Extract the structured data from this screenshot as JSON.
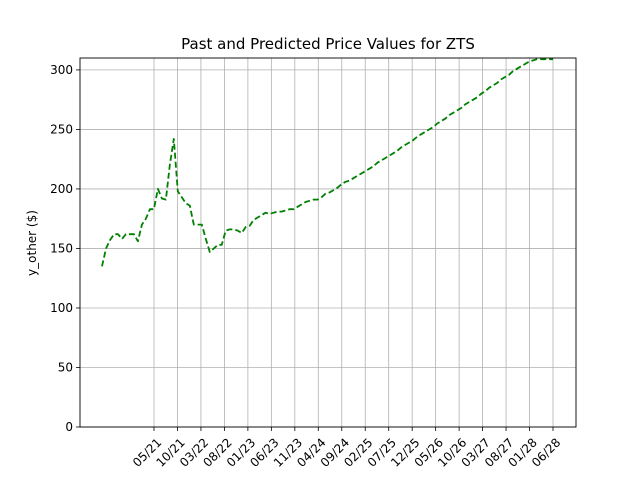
{
  "chart_data": {
    "type": "line",
    "title": "Past and Predicted Price Values for ZTS",
    "xlabel": "",
    "ylabel": "y_other ($)",
    "ylim": [
      0,
      310
    ],
    "yticks": [
      0,
      50,
      100,
      150,
      200,
      250,
      300
    ],
    "xtick_labels": [
      "05/21",
      "10/21",
      "03/22",
      "08/22",
      "01/23",
      "06/23",
      "11/23",
      "04/24",
      "09/24",
      "02/25",
      "07/25",
      "12/25",
      "05/26",
      "10/26",
      "03/27",
      "08/27",
      "01/28",
      "06/28"
    ],
    "grid": true,
    "series": [
      {
        "color": "#008000",
        "linestyle": "dashed",
        "x": [
          0,
          1,
          2,
          3,
          4,
          5,
          6,
          7,
          8,
          9,
          10,
          11,
          12,
          13,
          14,
          15,
          16,
          17,
          18,
          19,
          20,
          21,
          22,
          23,
          24,
          25,
          26,
          27,
          28,
          29,
          30,
          31,
          32,
          33,
          34,
          35,
          36,
          37,
          38,
          39,
          40,
          41,
          42,
          43,
          44,
          45,
          46,
          47,
          48,
          49,
          50,
          51,
          52,
          53,
          54,
          55,
          56,
          57,
          58,
          59,
          60,
          61,
          62,
          63,
          64,
          65,
          66,
          67,
          68,
          69,
          70,
          71,
          72,
          73,
          74,
          75,
          76,
          77,
          78,
          79,
          80,
          81,
          82,
          83,
          84,
          85,
          86,
          87,
          88,
          89,
          90,
          91,
          92,
          93,
          94,
          95,
          96,
          97,
          98,
          99,
          100,
          101,
          102,
          103,
          104,
          105,
          106,
          107,
          108,
          109,
          110,
          111,
          112,
          113
        ],
        "values": [
          135,
          150,
          157,
          162,
          162,
          158,
          162,
          162,
          162,
          156,
          170,
          175,
          183,
          183,
          200,
          192,
          191,
          220,
          242,
          198,
          193,
          188,
          186,
          170,
          170,
          170,
          158,
          147,
          150,
          153,
          153,
          165,
          166,
          166,
          165,
          163,
          168,
          169,
          174,
          176,
          178,
          180,
          179,
          180,
          181,
          181,
          182,
          183,
          183,
          185,
          187,
          189,
          190,
          191,
          191,
          193,
          196,
          197,
          199,
          201,
          204,
          206,
          207,
          209,
          211,
          213,
          215,
          217,
          219,
          222,
          224,
          226,
          228,
          230,
          232,
          235,
          237,
          239,
          241,
          244,
          246,
          248,
          250,
          252,
          255,
          257,
          259,
          262,
          264,
          266,
          268,
          271,
          273,
          275,
          277,
          280,
          282,
          285,
          287,
          289,
          292,
          294,
          296,
          299,
          301,
          303,
          305,
          307,
          308,
          309,
          309,
          309,
          309,
          309
        ]
      }
    ]
  }
}
